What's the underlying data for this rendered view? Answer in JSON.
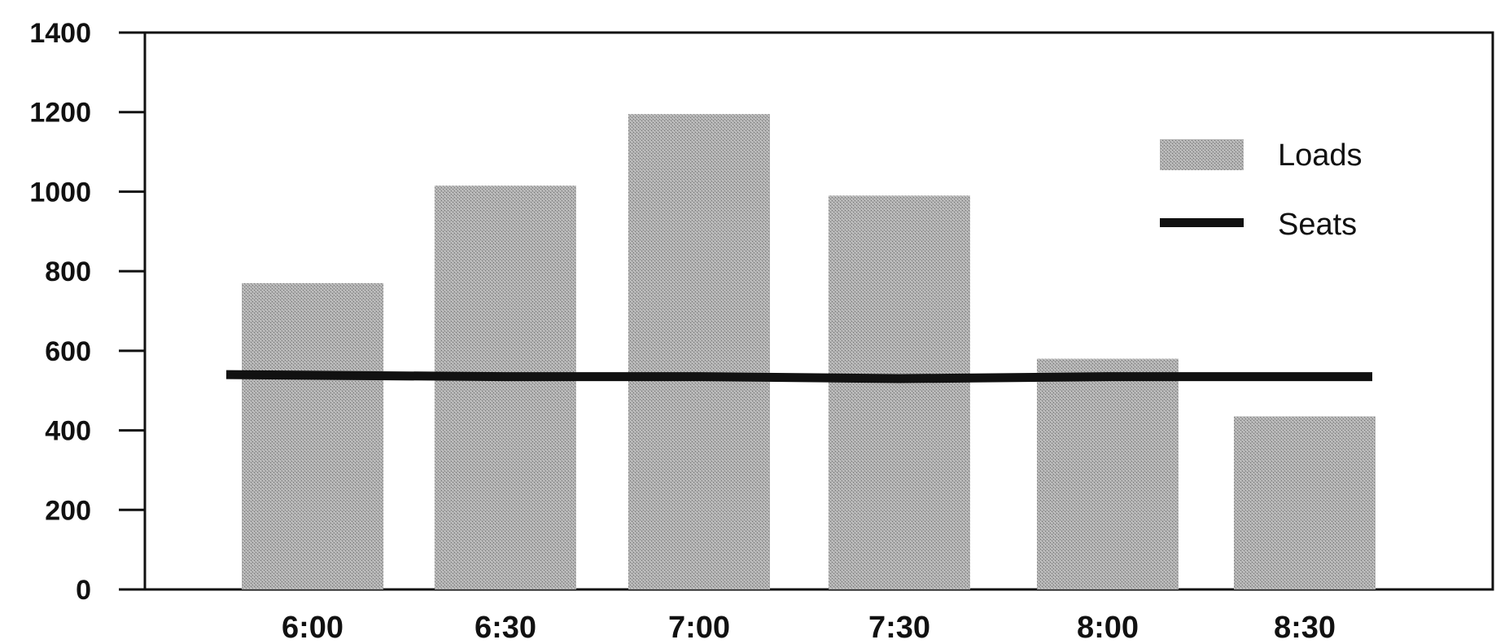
{
  "chart_data": {
    "type": "bar",
    "categories": [
      "6:00",
      "6:30",
      "7:00",
      "7:30",
      "8:00",
      "8:30"
    ],
    "series": [
      {
        "name": "Loads",
        "type": "bar",
        "values": [
          770,
          1015,
          1195,
          990,
          580,
          435
        ]
      },
      {
        "name": "Seats",
        "type": "line",
        "values": [
          540,
          535,
          535,
          530,
          535,
          535
        ]
      }
    ],
    "ylim": [
      0,
      1400
    ],
    "yticks": [
      0,
      200,
      400,
      600,
      800,
      1000,
      1200,
      1400
    ],
    "legend": {
      "position": "top-right",
      "entries": [
        "Loads",
        "Seats"
      ]
    },
    "grid": false,
    "colors": {
      "bar": "#a9a9a9",
      "line": "#111111",
      "axis": "#111111"
    }
  }
}
